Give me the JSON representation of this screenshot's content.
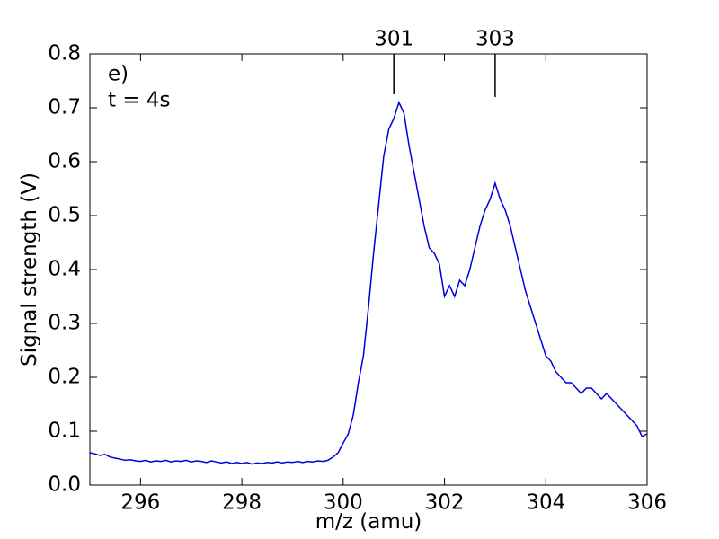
{
  "chart_data": {
    "type": "line",
    "x_label": "m/z (amu)",
    "y_label": "Signal strength (V)",
    "panel_label": "e)",
    "condition": "t = 4s",
    "xlim": [
      295,
      306
    ],
    "ylim": [
      0,
      0.8
    ],
    "xticks": [
      296,
      298,
      300,
      302,
      304,
      306
    ],
    "yticks": [
      {
        "value": 0,
        "label": "0.0"
      },
      0.1,
      0.2,
      0.3,
      0.4,
      0.5,
      0.6,
      0.7,
      0.8
    ],
    "peak_markers": [
      {
        "label": "301",
        "x": 301,
        "y": 0.725
      },
      {
        "label": "303",
        "x": 303,
        "y": 0.72
      }
    ],
    "series": [
      {
        "color": "#0000dd",
        "x": [
          295.0,
          295.1,
          295.2,
          295.3,
          295.4,
          295.5,
          295.6,
          295.7,
          295.8,
          295.9,
          296.0,
          296.1,
          296.2,
          296.3,
          296.4,
          296.5,
          296.6,
          296.7,
          296.8,
          296.9,
          297.0,
          297.1,
          297.2,
          297.3,
          297.4,
          297.5,
          297.6,
          297.7,
          297.8,
          297.9,
          298.0,
          298.1,
          298.2,
          298.3,
          298.4,
          298.5,
          298.6,
          298.7,
          298.8,
          298.9,
          299.0,
          299.1,
          299.2,
          299.3,
          299.4,
          299.5,
          299.6,
          299.7,
          299.8,
          299.9,
          300.0,
          300.1,
          300.2,
          300.3,
          300.4,
          300.5,
          300.6,
          300.7,
          300.8,
          300.9,
          301.0,
          301.1,
          301.2,
          301.3,
          301.4,
          301.5,
          301.6,
          301.7,
          301.8,
          301.9,
          302.0,
          302.1,
          302.2,
          302.3,
          302.4,
          302.5,
          302.6,
          302.7,
          302.8,
          302.9,
          303.0,
          303.1,
          303.2,
          303.3,
          303.4,
          303.5,
          303.6,
          303.7,
          303.8,
          303.9,
          304.0,
          304.1,
          304.2,
          304.3,
          304.4,
          304.5,
          304.6,
          304.7,
          304.8,
          304.9,
          305.0,
          305.1,
          305.2,
          305.3,
          305.4,
          305.5,
          305.6,
          305.7,
          305.8,
          305.9,
          306.0
        ],
        "values": [
          0.06,
          0.058,
          0.055,
          0.057,
          0.052,
          0.05,
          0.048,
          0.046,
          0.047,
          0.045,
          0.044,
          0.046,
          0.043,
          0.045,
          0.044,
          0.046,
          0.043,
          0.045,
          0.044,
          0.046,
          0.043,
          0.045,
          0.044,
          0.042,
          0.045,
          0.043,
          0.041,
          0.043,
          0.04,
          0.042,
          0.04,
          0.042,
          0.039,
          0.041,
          0.04,
          0.042,
          0.041,
          0.043,
          0.041,
          0.043,
          0.042,
          0.044,
          0.042,
          0.044,
          0.043,
          0.045,
          0.044,
          0.046,
          0.052,
          0.06,
          0.078,
          0.095,
          0.13,
          0.19,
          0.24,
          0.33,
          0.43,
          0.52,
          0.61,
          0.66,
          0.68,
          0.71,
          0.69,
          0.63,
          0.58,
          0.53,
          0.48,
          0.44,
          0.43,
          0.41,
          0.35,
          0.37,
          0.35,
          0.38,
          0.37,
          0.4,
          0.44,
          0.48,
          0.51,
          0.53,
          0.56,
          0.53,
          0.51,
          0.48,
          0.44,
          0.4,
          0.36,
          0.33,
          0.3,
          0.27,
          0.24,
          0.23,
          0.21,
          0.2,
          0.19,
          0.19,
          0.18,
          0.17,
          0.18,
          0.18,
          0.17,
          0.16,
          0.17,
          0.16,
          0.15,
          0.14,
          0.13,
          0.12,
          0.11,
          0.09,
          0.095
        ]
      }
    ]
  }
}
